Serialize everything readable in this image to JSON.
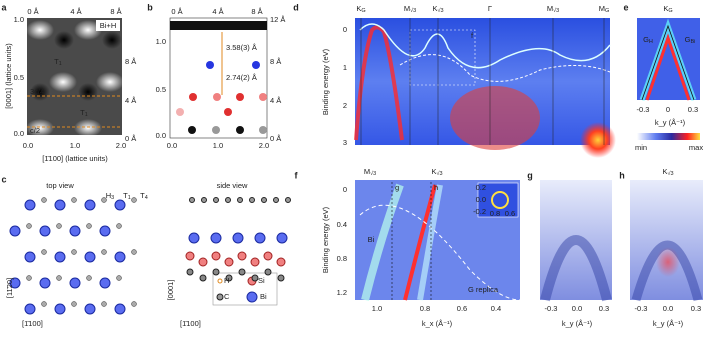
{
  "panels": {
    "a": {
      "label": "a",
      "top_ticks": [
        "0 Å",
        "4 Å",
        "8 Å"
      ],
      "right_ticks": [
        "8 Å",
        "4 Å",
        "0 Å"
      ],
      "left_ticks": [
        "1.0",
        "0.5",
        "0.0"
      ],
      "bottom_ticks": [
        "0.0",
        "1.0",
        "2.0"
      ],
      "x_label": "[1̄100] (lattice units)",
      "y_label": "[0001] (lattice units)",
      "tag": "Bi+H",
      "sites": [
        {
          "main": "T",
          "sub": "1"
        },
        {
          "main": "T",
          "sub": "1"
        }
      ],
      "lines": [
        "3c/4",
        "c/2"
      ]
    },
    "b": {
      "label": "b",
      "top_ticks": [
        "0 Å",
        "4 Å",
        "8 Å"
      ],
      "right_ticks": [
        "12 Å",
        "8 Å",
        "4 Å",
        "0 Å"
      ],
      "left_ticks": [
        "1.0",
        "0.5",
        "0.0"
      ],
      "bottom_ticks": [
        "0.0",
        "1.0",
        "2.0"
      ],
      "distances": [
        "3.58(3) Å",
        "2.74(2) Å"
      ]
    },
    "c": {
      "label": "c",
      "top_view": "top view",
      "side_view": "side view",
      "sites": [
        {
          "main": "H",
          "sub": "3"
        },
        {
          "main": "T",
          "sub": "1"
        },
        {
          "main": "T",
          "sub": "4"
        }
      ],
      "legend": [
        "H",
        "Si",
        "C",
        "Bi"
      ],
      "axes": [
        "[11̄20]",
        "[1̄100]",
        "[0001]",
        "[1̄100]"
      ]
    },
    "d": {
      "label": "d",
      "points": [
        {
          "main": "K",
          "sub": "G"
        },
        {
          "main": "M",
          "sub": "√3"
        },
        {
          "main": "K",
          "sub": "√3"
        },
        {
          "main": "Γ",
          "sub": ""
        },
        {
          "main": "M",
          "sub": "√3"
        },
        {
          "main": "M",
          "sub": "G"
        }
      ],
      "y_label": "Binding energy (eV)",
      "y_ticks": [
        "0",
        "1",
        "2",
        "3"
      ],
      "box_tag": "f"
    },
    "e": {
      "label": "e",
      "point": {
        "main": "K",
        "sub": "G"
      },
      "bands": [
        {
          "main": "G",
          "sub": "H"
        },
        {
          "main": "G",
          "sub": "Bi"
        }
      ],
      "x_ticks": [
        "-0.3",
        "0",
        "0.3"
      ],
      "x_label": "k_y (Å⁻¹)",
      "colorbar": [
        "min",
        "max"
      ]
    },
    "f": {
      "label": "f",
      "points": [
        {
          "main": "M",
          "sub": "√3"
        },
        {
          "main": "K",
          "sub": "√3"
        }
      ],
      "cuts": [
        "g",
        "h"
      ],
      "bands": [
        "Bi",
        "G replica"
      ],
      "y_label": "Binding energy (eV)",
      "y_ticks": [
        "0",
        "0.4",
        "0.8",
        "1.2"
      ],
      "x_ticks": [
        "1.0",
        "0.8",
        "0.6",
        "0.4"
      ],
      "x_label": "k_x (Å⁻¹)",
      "inset_y_ticks": [
        "0.2",
        "0.0",
        "-0.2"
      ],
      "inset_x_ticks": [
        "0.8",
        "0.6"
      ]
    },
    "g": {
      "label": "g",
      "x_ticks": [
        "-0.3",
        "0.0",
        "0.3"
      ],
      "x_label": "k_y (Å⁻¹)"
    },
    "h": {
      "label": "h",
      "point": {
        "main": "K",
        "sub": "√3"
      },
      "x_ticks": [
        "-0.3",
        "0.0",
        "0.3"
      ],
      "x_label": "k_y (Å⁻¹)"
    }
  }
}
